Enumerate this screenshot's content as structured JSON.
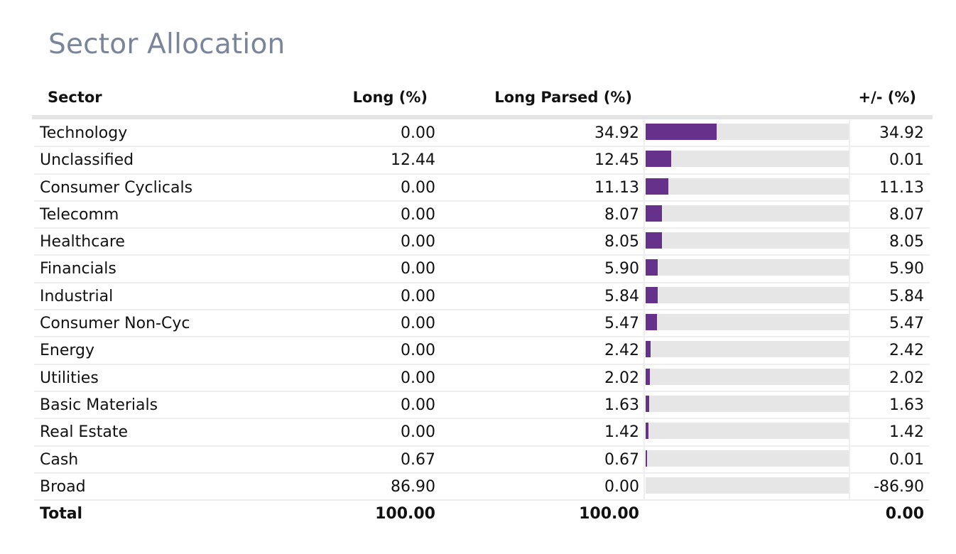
{
  "title": "Sector Allocation",
  "columns": {
    "sector": "Sector",
    "long": "Long (%)",
    "long_parsed": "Long Parsed (%)",
    "diff": "+/- (%)"
  },
  "colors": {
    "bar": "#65318a",
    "track": "#e6e6e6",
    "title": "#7a8599"
  },
  "bar_max": 100,
  "rows": [
    {
      "sector": "Technology",
      "long": "0.00",
      "long_parsed": "34.92",
      "diff": "34.92",
      "bar_value": 34.92
    },
    {
      "sector": "Unclassified",
      "long": "12.44",
      "long_parsed": "12.45",
      "diff": "0.01",
      "bar_value": 12.45
    },
    {
      "sector": "Consumer Cyclicals",
      "long": "0.00",
      "long_parsed": "11.13",
      "diff": "11.13",
      "bar_value": 11.13
    },
    {
      "sector": "Telecomm",
      "long": "0.00",
      "long_parsed": "8.07",
      "diff": "8.07",
      "bar_value": 8.07
    },
    {
      "sector": "Healthcare",
      "long": "0.00",
      "long_parsed": "8.05",
      "diff": "8.05",
      "bar_value": 8.05
    },
    {
      "sector": "Financials",
      "long": "0.00",
      "long_parsed": "5.90",
      "diff": "5.90",
      "bar_value": 5.9
    },
    {
      "sector": "Industrial",
      "long": "0.00",
      "long_parsed": "5.84",
      "diff": "5.84",
      "bar_value": 5.84
    },
    {
      "sector": "Consumer Non-Cyc",
      "long": "0.00",
      "long_parsed": "5.47",
      "diff": "5.47",
      "bar_value": 5.47
    },
    {
      "sector": "Energy",
      "long": "0.00",
      "long_parsed": "2.42",
      "diff": "2.42",
      "bar_value": 2.42
    },
    {
      "sector": "Utilities",
      "long": "0.00",
      "long_parsed": "2.02",
      "diff": "2.02",
      "bar_value": 2.02
    },
    {
      "sector": "Basic Materials",
      "long": "0.00",
      "long_parsed": "1.63",
      "diff": "1.63",
      "bar_value": 1.63
    },
    {
      "sector": "Real Estate",
      "long": "0.00",
      "long_parsed": "1.42",
      "diff": "1.42",
      "bar_value": 1.42
    },
    {
      "sector": "Cash",
      "long": "0.67",
      "long_parsed": "0.67",
      "diff": "0.01",
      "bar_value": 0.67
    },
    {
      "sector": "Broad",
      "long": "86.90",
      "long_parsed": "0.00",
      "diff": "-86.90",
      "bar_value": 0.0
    }
  ],
  "total": {
    "sector": "Total",
    "long": "100.00",
    "long_parsed": "100.00",
    "diff": "0.00"
  }
}
